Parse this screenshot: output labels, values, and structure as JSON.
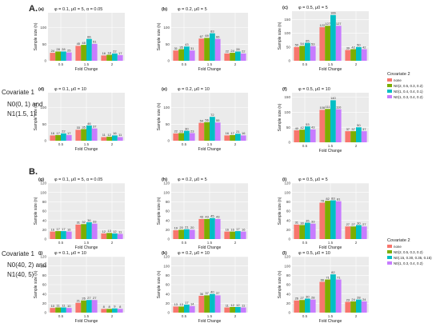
{
  "sections": [
    {
      "label": "A.",
      "covariate_title": "Covariate 1",
      "covariate_lines": [
        "N0(0, 1) and",
        "N1(1.5, 1)"
      ],
      "legend": {
        "title": "Covariate 2",
        "entries": [
          "none",
          "N0(2, 0.5, 0.3, 0.2)",
          "N0(1, 0.4, 0.4, 0.1)",
          "N0(1, 0.3, 0.4, 0.2)"
        ]
      }
    },
    {
      "label": "B.",
      "covariate_title": "Covariate 1",
      "covariate_lines": [
        "N0(40, 2) and",
        "N1(40, 5)"
      ],
      "legend": {
        "title": "Covariate 2",
        "entries": [
          "none",
          "N0(2, 0.5, 0.3, 0.2)",
          "N0(.15, 0.30, 0.35, 0.15)",
          "N0(1, 0.3, 0.4, 0.2)"
        ]
      }
    }
  ],
  "colors": {
    "series": [
      "#f8766d",
      "#7cae00",
      "#00bfc4",
      "#c77cff"
    ],
    "panel_bg": "#ebebeb"
  },
  "chart_data": [
    {
      "type": "bar",
      "panel": "(a)",
      "section": "A",
      "title": "φ = 0.1, μ0 = 5, α = 0.05",
      "xlabel": "Fold Change",
      "ylabel": "Sample size (n)",
      "categories": [
        "0.5",
        "1.5",
        "2"
      ],
      "ylim": [
        0,
        145
      ],
      "yticks": [
        0,
        50,
        100
      ],
      "series": [
        {
          "values": [
            24,
            45,
            16
          ]
        },
        {
          "values": [
            28,
            48,
            18
          ]
        },
        {
          "values": [
            28,
            66,
            22
          ]
        },
        {
          "values": [
            25,
            51,
            17
          ]
        }
      ]
    },
    {
      "type": "bar",
      "panel": "(b)",
      "section": "A",
      "title": "φ = 0.2, μ0 = 5",
      "xlabel": "Fold Change",
      "ylabel": "Sample size (n)",
      "categories": [
        "0.5",
        "1.5",
        "2"
      ],
      "ylim": [
        0,
        145
      ],
      "yticks": [
        0,
        50,
        100
      ],
      "series": [
        {
          "values": [
            31,
            67,
            22
          ]
        },
        {
          "values": [
            35,
            69,
            24
          ]
        },
        {
          "values": [
            43,
            83,
            28
          ]
        },
        {
          "values": [
            31,
            66,
            22
          ]
        }
      ]
    },
    {
      "type": "bar",
      "panel": "(c)",
      "section": "A",
      "title": "φ = 0.5, μ0 = 5",
      "xlabel": "Fold Change",
      "ylabel": "Sample size (n)",
      "categories": [
        "0.5",
        "1.5",
        "2"
      ],
      "ylim": [
        0,
        180
      ],
      "yticks": [
        0,
        50,
        100,
        150
      ],
      "series": [
        {
          "values": [
            50,
            122,
            39
          ]
        },
        {
          "values": [
            54,
            127,
            42
          ]
        },
        {
          "values": [
            65,
            166,
            50
          ]
        },
        {
          "values": [
            53,
            127,
            42
          ]
        }
      ]
    },
    {
      "type": "bar",
      "panel": "(d)",
      "section": "A",
      "title": "φ = 0.1, μ0 = 10",
      "xlabel": "Fold Change",
      "ylabel": "Sample size (n)",
      "categories": [
        "0.5",
        "1.5",
        "2"
      ],
      "ylim": [
        0,
        145
      ],
      "yticks": [
        0,
        50,
        100
      ],
      "series": [
        {
          "values": [
            16,
            33,
            11
          ]
        },
        {
          "values": [
            17,
            35,
            12
          ]
        },
        {
          "values": [
            22,
            46,
            16
          ]
        },
        {
          "values": [
            17,
            37,
            11
          ]
        }
      ]
    },
    {
      "type": "bar",
      "panel": "(e)",
      "section": "A",
      "title": "φ = 0.2, μ0 = 10",
      "xlabel": "Fold Change",
      "ylabel": "Sample size (n)",
      "categories": [
        "0.5",
        "1.5",
        "2"
      ],
      "ylim": [
        0,
        145
      ],
      "yticks": [
        0,
        50,
        100
      ],
      "series": [
        {
          "values": [
            22,
            54,
            16
          ]
        },
        {
          "values": [
            23,
            56,
            17
          ]
        },
        {
          "values": [
            30,
            72,
            21
          ]
        },
        {
          "values": [
            23,
            55,
            16
          ]
        }
      ]
    },
    {
      "type": "bar",
      "panel": "(f)",
      "section": "A",
      "title": "φ = 0.5, μ0 = 10",
      "xlabel": "Fold Change",
      "ylabel": "Sample size (n)",
      "categories": [
        "0.5",
        "1.5",
        "2"
      ],
      "ylim": [
        0,
        165
      ],
      "yticks": [
        0,
        50,
        100,
        150
      ],
      "series": [
        {
          "values": [
            40,
            108,
            37
          ]
        },
        {
          "values": [
            42,
            111,
            37
          ]
        },
        {
          "values": [
            53,
            140,
            50
          ]
        },
        {
          "values": [
            43,
            110,
            37
          ]
        }
      ]
    },
    {
      "type": "bar",
      "panel": "(g)",
      "section": "B",
      "title": "φ = 0.1, μ0 = 5, α = 0.05",
      "xlabel": "Fold Change",
      "ylabel": "Sample size (n)",
      "categories": [
        "0.5",
        "1.5",
        "2"
      ],
      "ylim": [
        0,
        120
      ],
      "yticks": [
        0,
        20,
        40,
        60,
        80,
        100,
        120
      ],
      "series": [
        {
          "values": [
            16,
            31,
            12
          ]
        },
        {
          "values": [
            17,
            32,
            13
          ]
        },
        {
          "values": [
            17,
            36,
            12
          ]
        },
        {
          "values": [
            16,
            33,
            11
          ]
        }
      ]
    },
    {
      "type": "bar",
      "panel": "(h)",
      "section": "B",
      "title": "φ = 0.2, μ0 = 5",
      "xlabel": "Fold Change",
      "ylabel": "Sample size (n)",
      "categories": [
        "0.5",
        "1.5",
        "2"
      ],
      "ylim": [
        0,
        120
      ],
      "yticks": [
        0,
        20,
        40,
        60,
        80,
        100,
        120
      ],
      "series": [
        {
          "values": [
            19,
            43,
            16
          ]
        },
        {
          "values": [
            20,
            43,
            16
          ]
        },
        {
          "values": [
            21,
            45,
            17
          ]
        },
        {
          "values": [
            20,
            43,
            16
          ]
        }
      ]
    },
    {
      "type": "bar",
      "panel": "(i)",
      "section": "B",
      "title": "φ = 0.5, μ0 = 5",
      "xlabel": "Fold Change",
      "ylabel": "Sample size (n)",
      "categories": [
        "0.5",
        "1.5",
        "2"
      ],
      "ylim": [
        0,
        120
      ],
      "yticks": [
        0,
        20,
        40,
        60,
        80,
        100,
        120
      ],
      "series": [
        {
          "values": [
            31,
            78,
            27
          ]
        },
        {
          "values": [
            30,
            82,
            27
          ]
        },
        {
          "values": [
            35,
            83,
            30
          ]
        },
        {
          "values": [
            33,
            81,
            27
          ]
        }
      ]
    },
    {
      "type": "bar",
      "panel": "(j)",
      "section": "B",
      "title": "φ = 0.1, μ0 = 10",
      "xlabel": "Fold Change",
      "ylabel": "Sample size (n)",
      "categories": [
        "0.5",
        "1.5",
        "2"
      ],
      "ylim": [
        0,
        120
      ],
      "yticks": [
        0,
        20,
        40,
        60,
        80,
        100,
        120
      ],
      "series": [
        {
          "values": [
            10,
            21,
            8
          ]
        },
        {
          "values": [
            11,
            26,
            8
          ]
        },
        {
          "values": [
            11,
            27,
            9
          ]
        },
        {
          "values": [
            10,
            27,
            8
          ]
        }
      ]
    },
    {
      "type": "bar",
      "panel": "(k)",
      "section": "B",
      "title": "φ = 0.2, μ0 = 10",
      "xlabel": "Fold Change",
      "ylabel": "Sample size (n)",
      "categories": [
        "0.5",
        "1.5",
        "2"
      ],
      "ylim": [
        0,
        120
      ],
      "yticks": [
        0,
        20,
        40,
        60,
        80,
        100,
        120
      ],
      "series": [
        {
          "values": [
            13,
            36,
            11
          ]
        },
        {
          "values": [
            13,
            37,
            12
          ]
        },
        {
          "values": [
            17,
            40,
            12
          ]
        },
        {
          "values": [
            14,
            37,
            11
          ]
        }
      ]
    },
    {
      "type": "bar",
      "panel": "(l)",
      "section": "B",
      "title": "φ = 0.5, μ0 = 10",
      "xlabel": "Fold Change",
      "ylabel": "Sample size (n)",
      "categories": [
        "0.5",
        "1.5",
        "2"
      ],
      "ylim": [
        0,
        120
      ],
      "yticks": [
        0,
        20,
        40,
        60,
        80,
        100,
        120
      ],
      "series": [
        {
          "values": [
            26,
            66,
            23
          ]
        },
        {
          "values": [
            27,
            71,
            24
          ]
        },
        {
          "values": [
            30,
            82,
            28
          ]
        },
        {
          "values": [
            28,
            71,
            24
          ]
        }
      ]
    }
  ]
}
